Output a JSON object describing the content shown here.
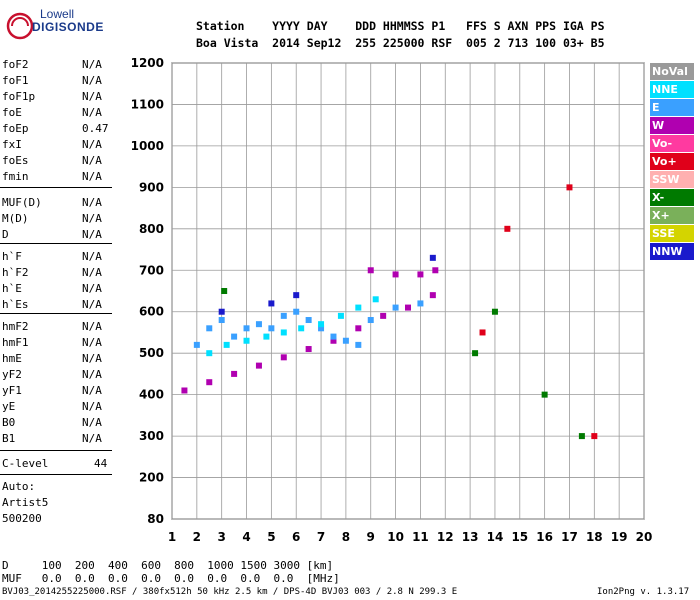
{
  "logo": {
    "line1": "Lowell",
    "line2": "DIGISONDE"
  },
  "header": {
    "line1": "Station    YYYY DAY    DDD HHMMSS P1   FFS S AXN PPS IGA PS",
    "line2": "Boa Vista  2014 Sep12  255 225000 RSF  005 2 713 100 03+ B5"
  },
  "params_group1": [
    {
      "label": "foF2",
      "value": "N/A"
    },
    {
      "label": "foF1",
      "value": "N/A"
    },
    {
      "label": "foF1p",
      "value": "N/A"
    },
    {
      "label": "foE",
      "value": "N/A"
    },
    {
      "label": "foEp",
      "value": "0.47"
    },
    {
      "label": "fxI",
      "value": "N/A"
    },
    {
      "label": "foEs",
      "value": "N/A"
    },
    {
      "label": "fmin",
      "value": "N/A"
    }
  ],
  "params_group2": [
    {
      "label": "MUF(D)",
      "value": "N/A"
    },
    {
      "label": "M(D)",
      "value": "N/A"
    },
    {
      "label": "D",
      "value": "N/A"
    }
  ],
  "params_group3": [
    {
      "label": "h`F",
      "value": "N/A"
    },
    {
      "label": "h`F2",
      "value": "N/A"
    },
    {
      "label": "h`E",
      "value": "N/A"
    },
    {
      "label": "h`Es",
      "value": "N/A"
    }
  ],
  "params_group4": [
    {
      "label": "hmF2",
      "value": "N/A"
    },
    {
      "label": "hmF1",
      "value": "N/A"
    },
    {
      "label": "hmE",
      "value": "N/A"
    },
    {
      "label": "yF2",
      "value": "N/A"
    },
    {
      "label": "yF1",
      "value": "N/A"
    },
    {
      "label": "yE",
      "value": "N/A"
    },
    {
      "label": "B0",
      "value": "N/A"
    },
    {
      "label": "B1",
      "value": "N/A"
    }
  ],
  "c_level": {
    "label": "C-level",
    "value": "44"
  },
  "auto": [
    "Auto:",
    "Artist5",
    "500200"
  ],
  "legend": [
    {
      "label": "NoVal",
      "color": "#9a9a9a"
    },
    {
      "label": "NNE",
      "color": "#00e0ff"
    },
    {
      "label": "E",
      "color": "#3aa0ff"
    },
    {
      "label": "W",
      "color": "#b000b0"
    },
    {
      "label": "Vo-",
      "color": "#ff3aa0"
    },
    {
      "label": "Vo+",
      "color": "#e0001a"
    },
    {
      "label": "SSW",
      "color": "#ffb0b0"
    },
    {
      "label": "X-",
      "color": "#007a00"
    },
    {
      "label": "X+",
      "color": "#7ab05a"
    },
    {
      "label": "SSE",
      "color": "#d4d400"
    },
    {
      "label": "NNW",
      "color": "#1a1acc"
    }
  ],
  "bottom": {
    "d_line": "D     100  200  400  600  800  1000 1500 3000 [km]",
    "muf_line": "MUF   0.0  0.0  0.0  0.0  0.0  0.0  0.0  0.0  [MHz]"
  },
  "footer": {
    "left": "BVJ03_2014255225000.RSF / 380fx512h 50 kHz 2.5 km / DPS-4D BVJ03 003 / 2.8 N 299.3 E",
    "right": "Ion2Png v. 1.3.17"
  },
  "chart_data": {
    "type": "scatter",
    "xlabel": "",
    "ylabel": "",
    "xlim": [
      1,
      20
    ],
    "ylim": [
      80,
      1200
    ],
    "x_ticks": [
      1,
      2,
      3,
      4,
      5,
      6,
      7,
      8,
      9,
      10,
      11,
      12,
      13,
      14,
      15,
      16,
      17,
      18,
      19,
      20
    ],
    "y_ticks": [
      80,
      200,
      300,
      400,
      500,
      600,
      700,
      800,
      900,
      1000,
      1100,
      1200
    ],
    "grid": true,
    "legend_position": "right",
    "series": [
      {
        "name": "W",
        "points": [
          [
            1.5,
            410
          ],
          [
            2.5,
            430
          ],
          [
            3.5,
            450
          ],
          [
            4.5,
            470
          ],
          [
            5.5,
            490
          ],
          [
            6.5,
            510
          ],
          [
            7.5,
            530
          ],
          [
            8.5,
            560
          ],
          [
            9.5,
            590
          ],
          [
            10.5,
            610
          ],
          [
            11.5,
            640
          ],
          [
            9.0,
            700
          ],
          [
            10.0,
            690
          ],
          [
            11.0,
            690
          ],
          [
            11.6,
            700
          ]
        ]
      },
      {
        "name": "E",
        "points": [
          [
            2.0,
            520
          ],
          [
            2.5,
            560
          ],
          [
            3.0,
            580
          ],
          [
            3.5,
            540
          ],
          [
            4.0,
            560
          ],
          [
            4.5,
            570
          ],
          [
            5.0,
            560
          ],
          [
            5.5,
            590
          ],
          [
            6.0,
            600
          ],
          [
            6.5,
            580
          ],
          [
            7.0,
            560
          ],
          [
            7.5,
            540
          ],
          [
            8.0,
            530
          ],
          [
            8.5,
            520
          ],
          [
            9.0,
            580
          ],
          [
            10.0,
            610
          ],
          [
            11.0,
            620
          ]
        ]
      },
      {
        "name": "NNE",
        "points": [
          [
            2.5,
            500
          ],
          [
            3.2,
            520
          ],
          [
            4.0,
            530
          ],
          [
            4.8,
            540
          ],
          [
            5.5,
            550
          ],
          [
            6.2,
            560
          ],
          [
            7.0,
            570
          ],
          [
            7.8,
            590
          ],
          [
            8.5,
            610
          ],
          [
            9.2,
            630
          ]
        ]
      },
      {
        "name": "NNW",
        "points": [
          [
            3.0,
            600
          ],
          [
            5.0,
            620
          ],
          [
            6.0,
            640
          ],
          [
            11.5,
            730
          ]
        ]
      },
      {
        "name": "X-",
        "points": [
          [
            3.1,
            650
          ],
          [
            13.2,
            500
          ],
          [
            14.0,
            600
          ],
          [
            16.0,
            400
          ],
          [
            17.5,
            300
          ]
        ]
      },
      {
        "name": "Vo+",
        "points": [
          [
            13.5,
            550
          ],
          [
            14.5,
            800
          ],
          [
            17.0,
            900
          ],
          [
            18.0,
            300
          ]
        ]
      }
    ]
  }
}
